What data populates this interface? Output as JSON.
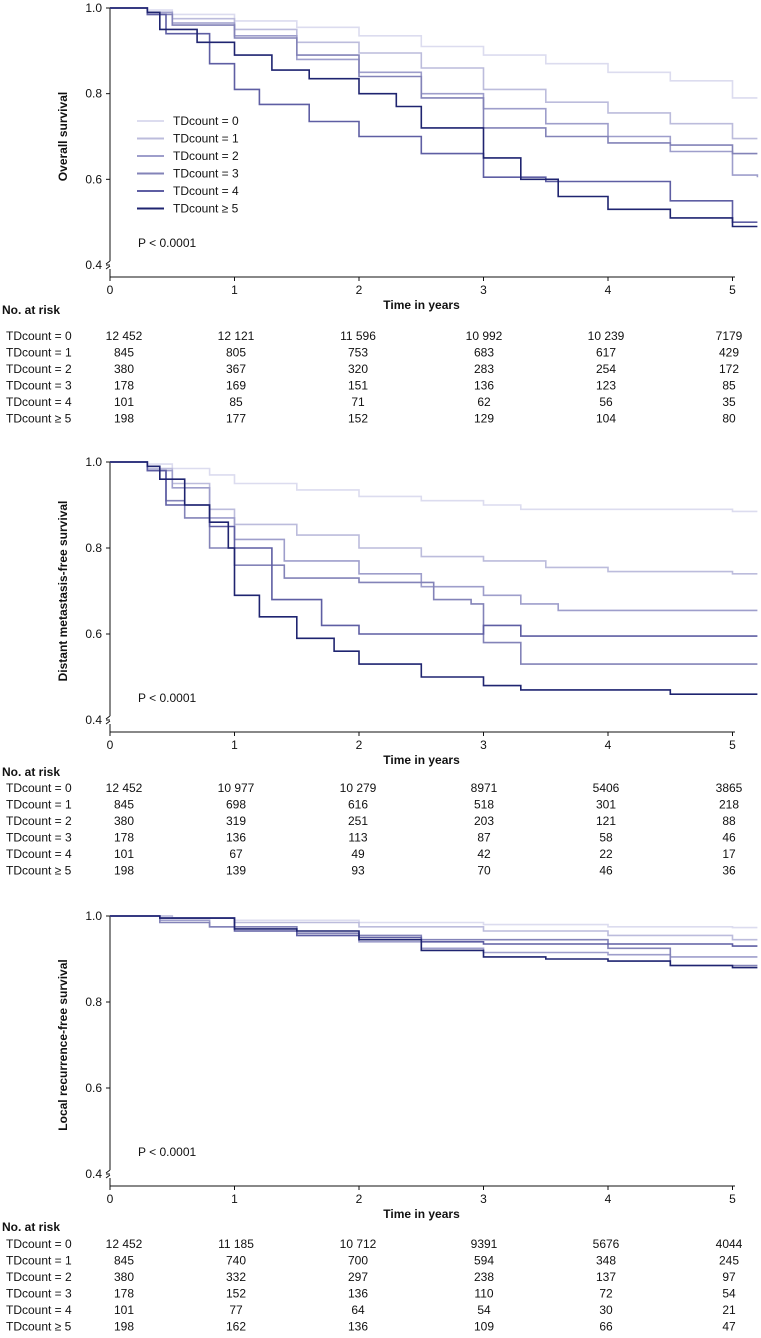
{
  "colors": [
    "#dcdcef",
    "#bcbcdc",
    "#9e9ecb",
    "#8383b8",
    "#5e5ea3",
    "#1f2470"
  ],
  "legend": [
    "TDcount = 0",
    "TDcount = 1",
    "TDcount = 2",
    "TDcount = 3",
    "TDcount = 4",
    "TDcount ≥ 5"
  ],
  "chart_data": [
    {
      "type": "line",
      "ylabel": "Overall survival",
      "xlabel": "Time in years",
      "ylim": [
        0.4,
        1.0
      ],
      "xlim": [
        0,
        5.2
      ],
      "yticks": [
        "0.4",
        "0.6",
        "0.8",
        "1.0"
      ],
      "xticks": [
        "0",
        "1",
        "2",
        "3",
        "4",
        "5"
      ],
      "pvalue": "P < 0.0001",
      "show_legend": true,
      "series": [
        {
          "name": "TDcount = 0",
          "x": [
            0,
            0.3,
            0.5,
            1,
            1.5,
            2,
            2.5,
            3,
            3.5,
            4,
            4.5,
            5,
            5.2
          ],
          "y": [
            1,
            0.995,
            0.985,
            0.97,
            0.955,
            0.935,
            0.91,
            0.89,
            0.87,
            0.85,
            0.83,
            0.79,
            0.79
          ]
        },
        {
          "name": "TDcount = 1",
          "x": [
            0,
            0.3,
            0.5,
            1,
            1.5,
            2,
            2.5,
            3,
            3.5,
            4,
            4.5,
            5,
            5.2
          ],
          "y": [
            1,
            0.99,
            0.975,
            0.95,
            0.92,
            0.895,
            0.86,
            0.81,
            0.78,
            0.755,
            0.73,
            0.695,
            0.695
          ]
        },
        {
          "name": "TDcount = 2",
          "x": [
            0,
            0.3,
            0.5,
            1,
            1.5,
            2,
            2.5,
            3,
            3.5,
            4,
            4.5,
            5,
            5.2
          ],
          "y": [
            1,
            0.99,
            0.965,
            0.935,
            0.88,
            0.85,
            0.8,
            0.765,
            0.73,
            0.7,
            0.665,
            0.61,
            0.605
          ]
        },
        {
          "name": "TDcount = 3",
          "x": [
            0,
            0.3,
            0.5,
            1,
            1.5,
            2,
            2.5,
            3,
            3.5,
            4,
            4.5,
            5,
            5.2
          ],
          "y": [
            1,
            0.985,
            0.96,
            0.93,
            0.89,
            0.84,
            0.79,
            0.72,
            0.7,
            0.685,
            0.68,
            0.66,
            0.66
          ]
        },
        {
          "name": "TDcount = 4",
          "x": [
            0,
            0.3,
            0.45,
            0.8,
            1,
            1.2,
            1.6,
            2,
            2.5,
            3,
            3.5,
            4,
            4.5,
            5,
            5.2
          ],
          "y": [
            1,
            0.985,
            0.94,
            0.87,
            0.81,
            0.775,
            0.735,
            0.7,
            0.66,
            0.605,
            0.595,
            0.595,
            0.55,
            0.5,
            0.5
          ]
        },
        {
          "name": "TDcount ≥ 5",
          "x": [
            0,
            0.3,
            0.4,
            0.7,
            1,
            1.3,
            1.6,
            2,
            2.3,
            2.5,
            3,
            3.3,
            3.6,
            4,
            4.5,
            5,
            5.2
          ],
          "y": [
            1,
            0.99,
            0.95,
            0.92,
            0.89,
            0.855,
            0.835,
            0.8,
            0.77,
            0.72,
            0.65,
            0.6,
            0.56,
            0.53,
            0.51,
            0.49,
            0.49
          ]
        }
      ],
      "risk_table": {
        "title": "No. at risk",
        "rows": [
          {
            "label": "TDcount = 0",
            "values": [
              "12 452",
              "12 121",
              "11 596",
              "10 992",
              "10 239",
              "7179"
            ]
          },
          {
            "label": "TDcount = 1",
            "values": [
              "845",
              "805",
              "753",
              "683",
              "617",
              "429"
            ]
          },
          {
            "label": "TDcount = 2",
            "values": [
              "380",
              "367",
              "320",
              "283",
              "254",
              "172"
            ]
          },
          {
            "label": "TDcount = 3",
            "values": [
              "178",
              "169",
              "151",
              "136",
              "123",
              "85"
            ]
          },
          {
            "label": "TDcount = 4",
            "values": [
              "101",
              "85",
              "71",
              "62",
              "56",
              "35"
            ]
          },
          {
            "label": "TDcount ≥ 5",
            "values": [
              "198",
              "177",
              "152",
              "129",
              "104",
              "80"
            ]
          }
        ]
      }
    },
    {
      "type": "line",
      "ylabel": "Distant metastasis-free survival",
      "xlabel": "Time in years",
      "ylim": [
        0.4,
        1.0
      ],
      "xlim": [
        0,
        5.2
      ],
      "yticks": [
        "0.4",
        "0.6",
        "0.8",
        "1.0"
      ],
      "xticks": [
        "0",
        "1",
        "2",
        "3",
        "4",
        "5"
      ],
      "pvalue": "P < 0.0001",
      "show_legend": false,
      "series": [
        {
          "name": "TDcount = 0",
          "x": [
            0,
            0.3,
            0.5,
            0.8,
            1,
            1.5,
            2,
            2.5,
            3,
            3.3,
            4,
            5,
            5.2
          ],
          "y": [
            1,
            0.995,
            0.985,
            0.97,
            0.95,
            0.935,
            0.92,
            0.91,
            0.9,
            0.89,
            0.89,
            0.885,
            0.885
          ]
        },
        {
          "name": "TDcount = 1",
          "x": [
            0,
            0.3,
            0.5,
            0.8,
            1,
            1.5,
            2,
            2.5,
            3,
            3.5,
            4,
            5,
            5.2
          ],
          "y": [
            1,
            0.985,
            0.95,
            0.89,
            0.855,
            0.83,
            0.8,
            0.78,
            0.77,
            0.755,
            0.745,
            0.74,
            0.74
          ]
        },
        {
          "name": "TDcount = 2",
          "x": [
            0,
            0.3,
            0.5,
            0.8,
            1,
            1.4,
            2,
            2.5,
            3,
            3.3,
            3.6,
            4,
            5,
            5.2
          ],
          "y": [
            1,
            0.98,
            0.94,
            0.87,
            0.82,
            0.77,
            0.74,
            0.71,
            0.69,
            0.67,
            0.655,
            0.655,
            0.655,
            0.655
          ]
        },
        {
          "name": "TDcount = 3",
          "x": [
            0,
            0.3,
            0.45,
            0.6,
            0.8,
            1,
            1.4,
            2,
            2.6,
            2.9,
            3,
            3.3,
            4,
            5,
            5.2
          ],
          "y": [
            1,
            0.98,
            0.91,
            0.87,
            0.8,
            0.76,
            0.73,
            0.72,
            0.68,
            0.67,
            0.58,
            0.53,
            0.53,
            0.53,
            0.53
          ]
        },
        {
          "name": "TDcount = 4",
          "x": [
            0,
            0.3,
            0.45,
            0.8,
            1,
            1.3,
            1.7,
            2,
            2.5,
            2.9,
            3,
            3.3,
            4,
            5,
            5.2
          ],
          "y": [
            1,
            0.98,
            0.9,
            0.85,
            0.8,
            0.68,
            0.62,
            0.6,
            0.6,
            0.6,
            0.62,
            0.595,
            0.595,
            0.595,
            0.595
          ]
        },
        {
          "name": "TDcount ≥ 5",
          "x": [
            0,
            0.3,
            0.4,
            0.6,
            0.8,
            0.95,
            1,
            1.2,
            1.5,
            1.8,
            2,
            2.5,
            3,
            3.3,
            4,
            4.5,
            5,
            5.2
          ],
          "y": [
            1,
            0.99,
            0.96,
            0.9,
            0.86,
            0.8,
            0.69,
            0.64,
            0.59,
            0.56,
            0.53,
            0.5,
            0.48,
            0.47,
            0.47,
            0.46,
            0.46,
            0.46
          ]
        }
      ],
      "risk_table": {
        "title": "No. at risk",
        "rows": [
          {
            "label": "TDcount = 0",
            "values": [
              "12 452",
              "10 977",
              "10 279",
              "8971",
              "5406",
              "3865"
            ]
          },
          {
            "label": "TDcount = 1",
            "values": [
              "845",
              "698",
              "616",
              "518",
              "301",
              "218"
            ]
          },
          {
            "label": "TDcount = 2",
            "values": [
              "380",
              "319",
              "251",
              "203",
              "121",
              "88"
            ]
          },
          {
            "label": "TDcount = 3",
            "values": [
              "178",
              "136",
              "113",
              "87",
              "58",
              "46"
            ]
          },
          {
            "label": "TDcount = 4",
            "values": [
              "101",
              "67",
              "49",
              "42",
              "22",
              "17"
            ]
          },
          {
            "label": "TDcount ≥ 5",
            "values": [
              "198",
              "139",
              "93",
              "70",
              "46",
              "36"
            ]
          }
        ]
      }
    },
    {
      "type": "line",
      "ylabel": "Local recurrence-free survival",
      "xlabel": "Time in years",
      "ylim": [
        0.4,
        1.0
      ],
      "xlim": [
        0,
        5.2
      ],
      "yticks": [
        "0.4",
        "0.6",
        "0.8",
        "1.0"
      ],
      "xticks": [
        "0",
        "1",
        "2",
        "3",
        "4",
        "5"
      ],
      "pvalue": "P < 0.0001",
      "show_legend": false,
      "series": [
        {
          "name": "TDcount = 0",
          "x": [
            0,
            0.5,
            1,
            2,
            3,
            4,
            5,
            5.2
          ],
          "y": [
            1,
            0.995,
            0.99,
            0.985,
            0.98,
            0.975,
            0.973,
            0.973
          ]
        },
        {
          "name": "TDcount = 1",
          "x": [
            0,
            0.5,
            1,
            2,
            3,
            4,
            5,
            5.2
          ],
          "y": [
            1,
            0.995,
            0.985,
            0.975,
            0.965,
            0.955,
            0.945,
            0.945
          ]
        },
        {
          "name": "TDcount = 2",
          "x": [
            0,
            0.4,
            0.8,
            1.5,
            2,
            2.5,
            3,
            4,
            4.5,
            5,
            5.2
          ],
          "y": [
            1,
            0.99,
            0.975,
            0.955,
            0.94,
            0.925,
            0.915,
            0.91,
            0.905,
            0.905,
            0.905
          ]
        },
        {
          "name": "TDcount = 3",
          "x": [
            0,
            0.4,
            0.8,
            1.5,
            2,
            2.5,
            3,
            4,
            4.5,
            5,
            5.2
          ],
          "y": [
            1,
            0.985,
            0.975,
            0.96,
            0.955,
            0.945,
            0.945,
            0.925,
            0.885,
            0.885,
            0.885
          ]
        },
        {
          "name": "TDcount = 4",
          "x": [
            0,
            0.4,
            1,
            1.5,
            2,
            2.5,
            3,
            4,
            5,
            5.2
          ],
          "y": [
            1,
            0.995,
            0.965,
            0.955,
            0.95,
            0.94,
            0.935,
            0.935,
            0.93,
            0.93
          ]
        },
        {
          "name": "TDcount ≥ 5",
          "x": [
            0,
            0.4,
            1,
            1.5,
            2,
            2.5,
            3,
            3.5,
            4,
            4.5,
            5,
            5.2
          ],
          "y": [
            1,
            0.995,
            0.97,
            0.965,
            0.945,
            0.92,
            0.905,
            0.9,
            0.895,
            0.885,
            0.88,
            0.88
          ]
        }
      ],
      "risk_table": {
        "title": "No. at risk",
        "rows": [
          {
            "label": "TDcount = 0",
            "values": [
              "12 452",
              "11 185",
              "10 712",
              "9391",
              "5676",
              "4044"
            ]
          },
          {
            "label": "TDcount = 1",
            "values": [
              "845",
              "740",
              "700",
              "594",
              "348",
              "245"
            ]
          },
          {
            "label": "TDcount = 2",
            "values": [
              "380",
              "332",
              "297",
              "238",
              "137",
              "97"
            ]
          },
          {
            "label": "TDcount = 3",
            "values": [
              "178",
              "152",
              "136",
              "110",
              "72",
              "54"
            ]
          },
          {
            "label": "TDcount = 4",
            "values": [
              "101",
              "77",
              "64",
              "54",
              "30",
              "21"
            ]
          },
          {
            "label": "TDcount ≥ 5",
            "values": [
              "198",
              "162",
              "136",
              "109",
              "66",
              "47"
            ]
          }
        ]
      }
    }
  ]
}
